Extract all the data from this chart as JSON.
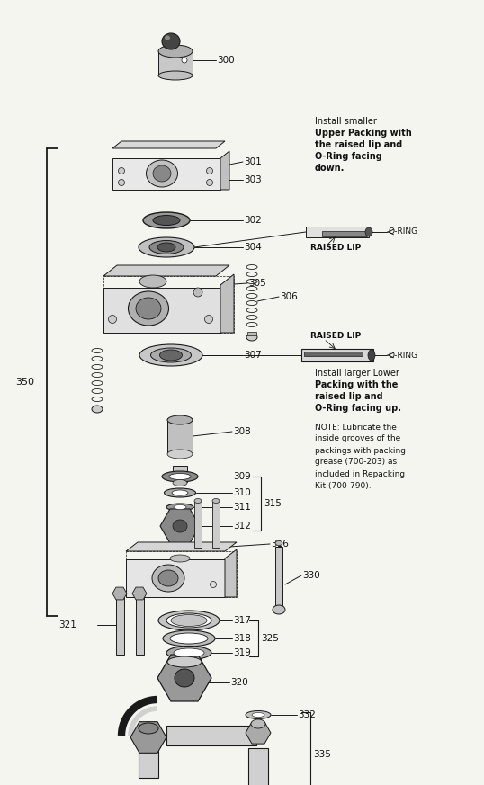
{
  "bg_color": "#f5f5f0",
  "line_color": "#1a1a1a",
  "text_color": "#111111",
  "figsize": [
    5.38,
    8.73
  ],
  "dpi": 100,
  "note1_text": "Install smaller\nUpper Packing with\nthe raised lip and\nO-Ring facing\ndown.",
  "note1_bold": "Upper Packing with\nthe raised lip and\nO-Ring facing\ndown.",
  "note2_text": "Install larger Lower\nPacking with the\nraised lip and\nO-Ring facing up.",
  "note2_bold": "Packing with the\nraised lip and\nO-Ring facing up.",
  "note3_text": "NOTE: Lubricate the\ninside grooves of the\npackings with packing\ngrease (700-203) as\nincluded in Repacking\nKit (700-790).",
  "raised_lip1": "RAISED LIP",
  "raised_lip2": "RAISED LIP",
  "oring_text": "←O-RING"
}
